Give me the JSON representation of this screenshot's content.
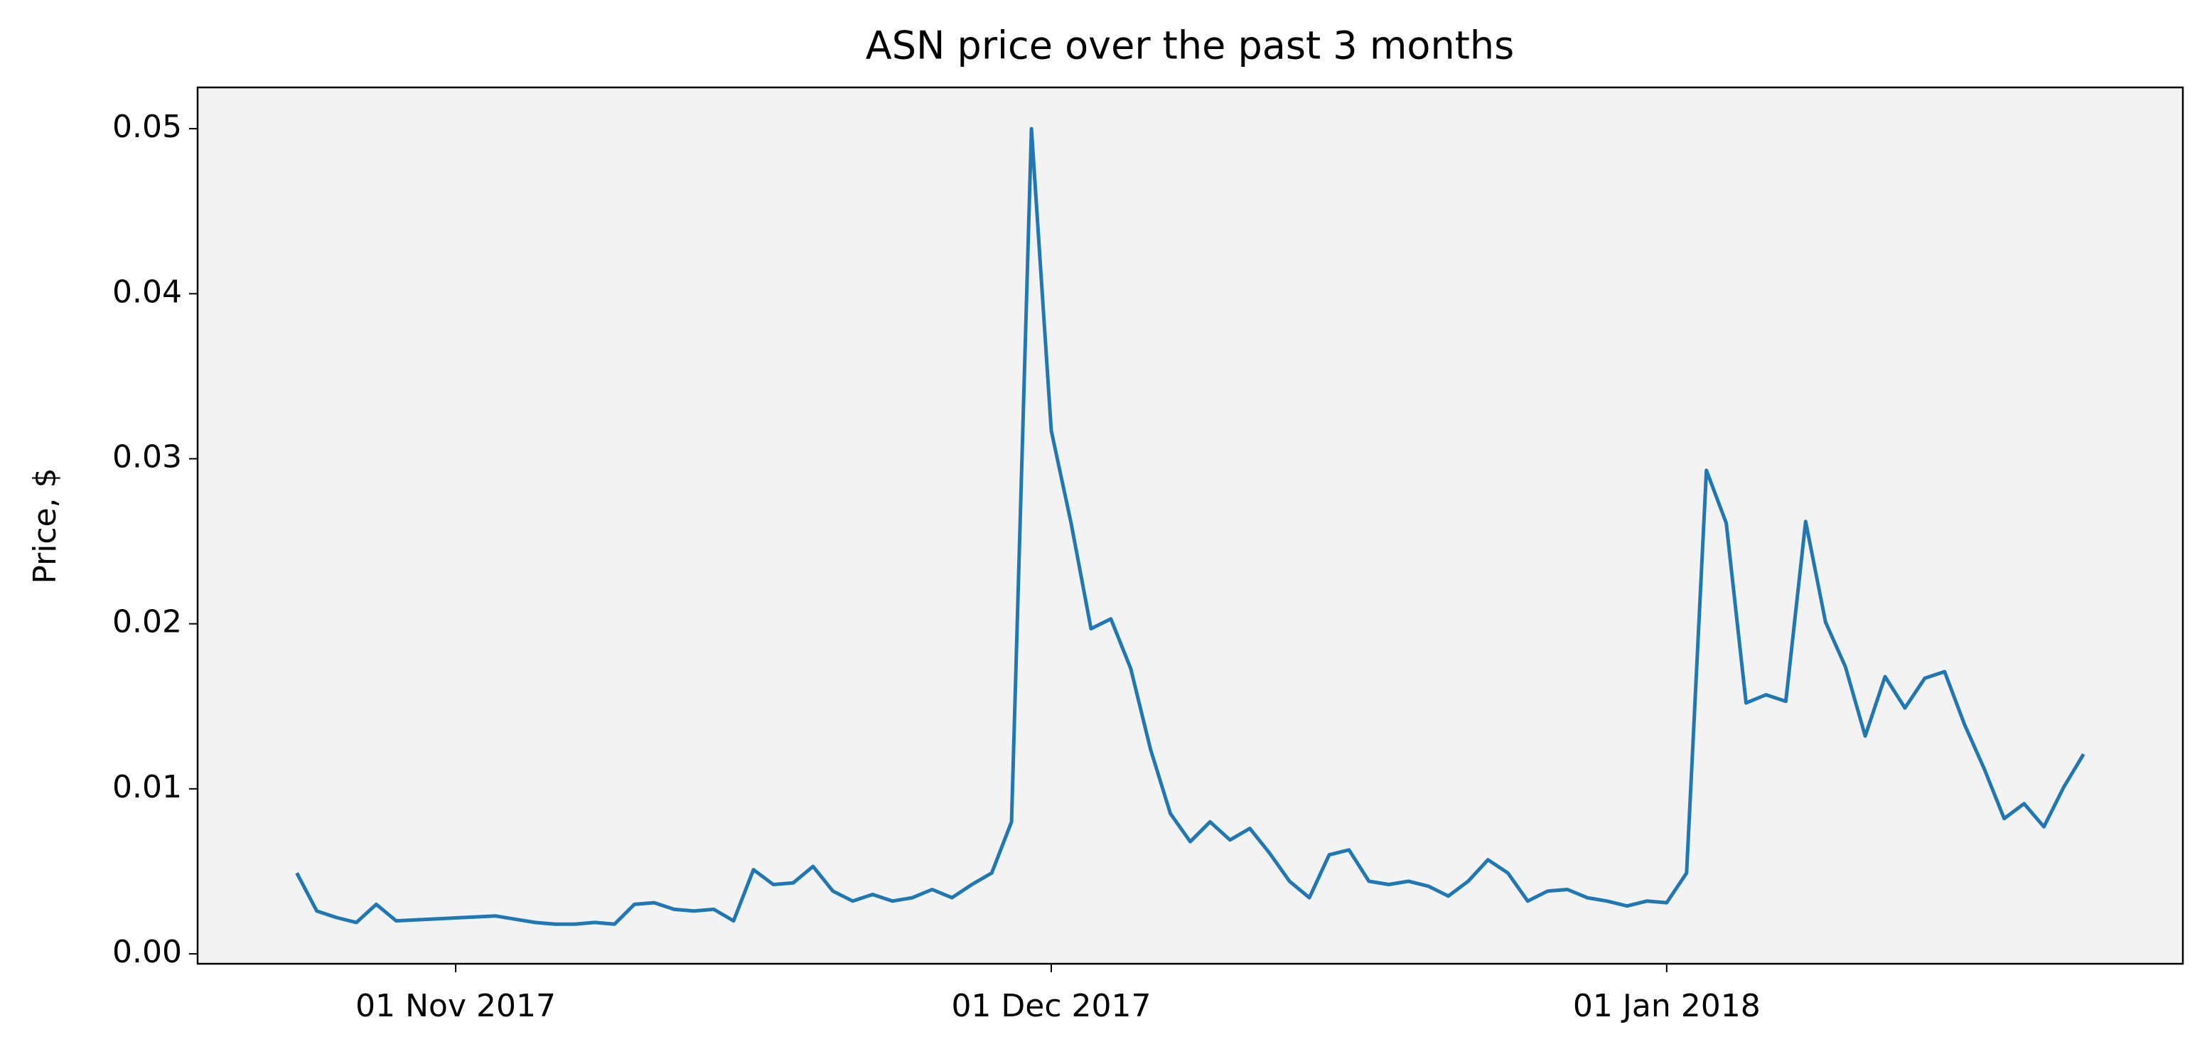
{
  "chart_data": {
    "type": "line",
    "title": "ASN price over the past 3 months",
    "ylabel": "Price, $",
    "x": [
      "2017-10-24",
      "2017-10-25",
      "2017-10-26",
      "2017-10-27",
      "2017-10-28",
      "2017-10-29",
      "2017-11-03",
      "2017-11-04",
      "2017-11-05",
      "2017-11-06",
      "2017-11-07",
      "2017-11-08",
      "2017-11-09",
      "2017-11-10",
      "2017-11-11",
      "2017-11-12",
      "2017-11-13",
      "2017-11-14",
      "2017-11-15",
      "2017-11-16",
      "2017-11-17",
      "2017-11-18",
      "2017-11-19",
      "2017-11-20",
      "2017-11-21",
      "2017-11-22",
      "2017-11-23",
      "2017-11-24",
      "2017-11-25",
      "2017-11-26",
      "2017-11-27",
      "2017-11-28",
      "2017-11-29",
      "2017-11-30",
      "2017-12-01",
      "2017-12-02",
      "2017-12-03",
      "2017-12-04",
      "2017-12-05",
      "2017-12-06",
      "2017-12-07",
      "2017-12-08",
      "2017-12-09",
      "2017-12-10",
      "2017-12-11",
      "2017-12-12",
      "2017-12-13",
      "2017-12-14",
      "2017-12-15",
      "2017-12-16",
      "2017-12-17",
      "2017-12-18",
      "2017-12-19",
      "2017-12-20",
      "2017-12-21",
      "2017-12-22",
      "2017-12-23",
      "2017-12-24",
      "2017-12-25",
      "2017-12-26",
      "2017-12-27",
      "2017-12-28",
      "2017-12-29",
      "2017-12-30",
      "2017-12-31",
      "2018-01-01",
      "2018-01-02",
      "2018-01-03",
      "2018-01-04",
      "2018-01-05",
      "2018-01-06",
      "2018-01-07",
      "2018-01-08",
      "2018-01-09",
      "2018-01-10",
      "2018-01-11",
      "2018-01-12",
      "2018-01-13",
      "2018-01-14",
      "2018-01-15",
      "2018-01-16",
      "2018-01-17",
      "2018-01-18",
      "2018-01-19",
      "2018-01-20",
      "2018-01-21",
      "2018-01-22"
    ],
    "values": [
      0.0049,
      0.0026,
      0.0022,
      0.0019,
      0.003,
      0.002,
      0.0023,
      0.0021,
      0.0019,
      0.0018,
      0.0018,
      0.0019,
      0.0018,
      0.003,
      0.0031,
      0.0027,
      0.0026,
      0.0027,
      0.002,
      0.0051,
      0.0042,
      0.0043,
      0.0053,
      0.0038,
      0.0032,
      0.0036,
      0.0032,
      0.0034,
      0.0039,
      0.0034,
      0.0042,
      0.0049,
      0.008,
      0.05,
      0.0317,
      0.0261,
      0.0197,
      0.0203,
      0.0173,
      0.0124,
      0.0085,
      0.0068,
      0.008,
      0.0069,
      0.0076,
      0.0061,
      0.0044,
      0.0034,
      0.006,
      0.0063,
      0.0044,
      0.0042,
      0.0044,
      0.0041,
      0.0035,
      0.0044,
      0.0057,
      0.0049,
      0.0032,
      0.0038,
      0.0039,
      0.0034,
      0.0032,
      0.0029,
      0.0032,
      0.0031,
      0.0049,
      0.0293,
      0.0261,
      0.0152,
      0.0157,
      0.0153,
      0.0262,
      0.0201,
      0.0174,
      0.0132,
      0.0168,
      0.0149,
      0.0167,
      0.0171,
      0.0139,
      0.0112,
      0.0082,
      0.0091,
      0.0077,
      0.0101,
      0.0121
    ],
    "color": "#1f77b4",
    "xlim": [
      "2017-10-19",
      "2018-01-27"
    ],
    "xticks": [
      {
        "value": "2017-11-01",
        "label": "01 Nov 2017"
      },
      {
        "value": "2017-12-01",
        "label": "01 Dec 2017"
      },
      {
        "value": "2018-01-01",
        "label": "01 Jan 2018"
      }
    ],
    "ylim": [
      -0.0006,
      0.0525
    ],
    "yticks": [
      {
        "value": 0,
        "label": "0.00"
      },
      0.01,
      0.02,
      0.03,
      0.04,
      0.05
    ],
    "background": "#f3f3f3",
    "grid": false
  }
}
